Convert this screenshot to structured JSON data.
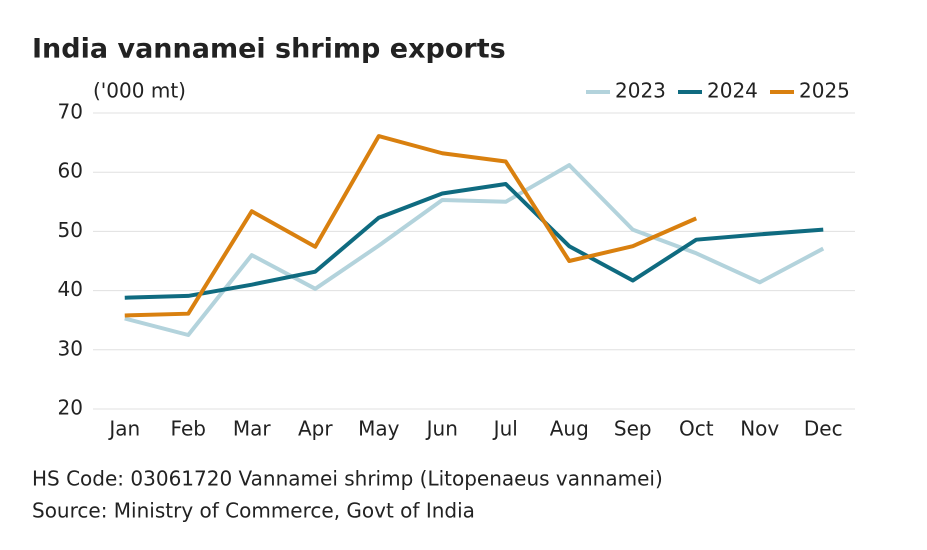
{
  "chart_data": {
    "type": "line",
    "title": "India vannamei shrimp exports",
    "y_label": "('000 mt)",
    "categories": [
      "Jan",
      "Feb",
      "Mar",
      "Apr",
      "May",
      "Jun",
      "Jul",
      "Aug",
      "Sep",
      "Oct",
      "Nov",
      "Dec"
    ],
    "series": [
      {
        "name": "2023",
        "color": "#b3d3dc",
        "values": [
          35.3,
          32.5,
          46,
          40.3,
          47.6,
          55.3,
          55,
          61.2,
          50.3,
          46.3,
          41.4,
          47.1
        ]
      },
      {
        "name": "2024",
        "color": "#0f6b80",
        "values": [
          38.8,
          39.1,
          41,
          43.2,
          52.3,
          56.4,
          58,
          47.5,
          41.7,
          48.6,
          49.5,
          50.3
        ]
      },
      {
        "name": "2025",
        "color": "#d9800f",
        "values": [
          35.8,
          36.1,
          53.4,
          47.4,
          66.1,
          63.2,
          61.8,
          45,
          47.5,
          52.2,
          null,
          null
        ]
      }
    ],
    "ylim": [
      20,
      70
    ],
    "yticks": [
      20,
      30,
      40,
      50,
      60,
      70
    ],
    "grid": true,
    "legend": "top-right",
    "notes": [
      "HS Code: 03061720 Vannamei shrimp (Litopenaeus vannamei)",
      "Source: Ministry of Commerce, Govt of India"
    ]
  }
}
